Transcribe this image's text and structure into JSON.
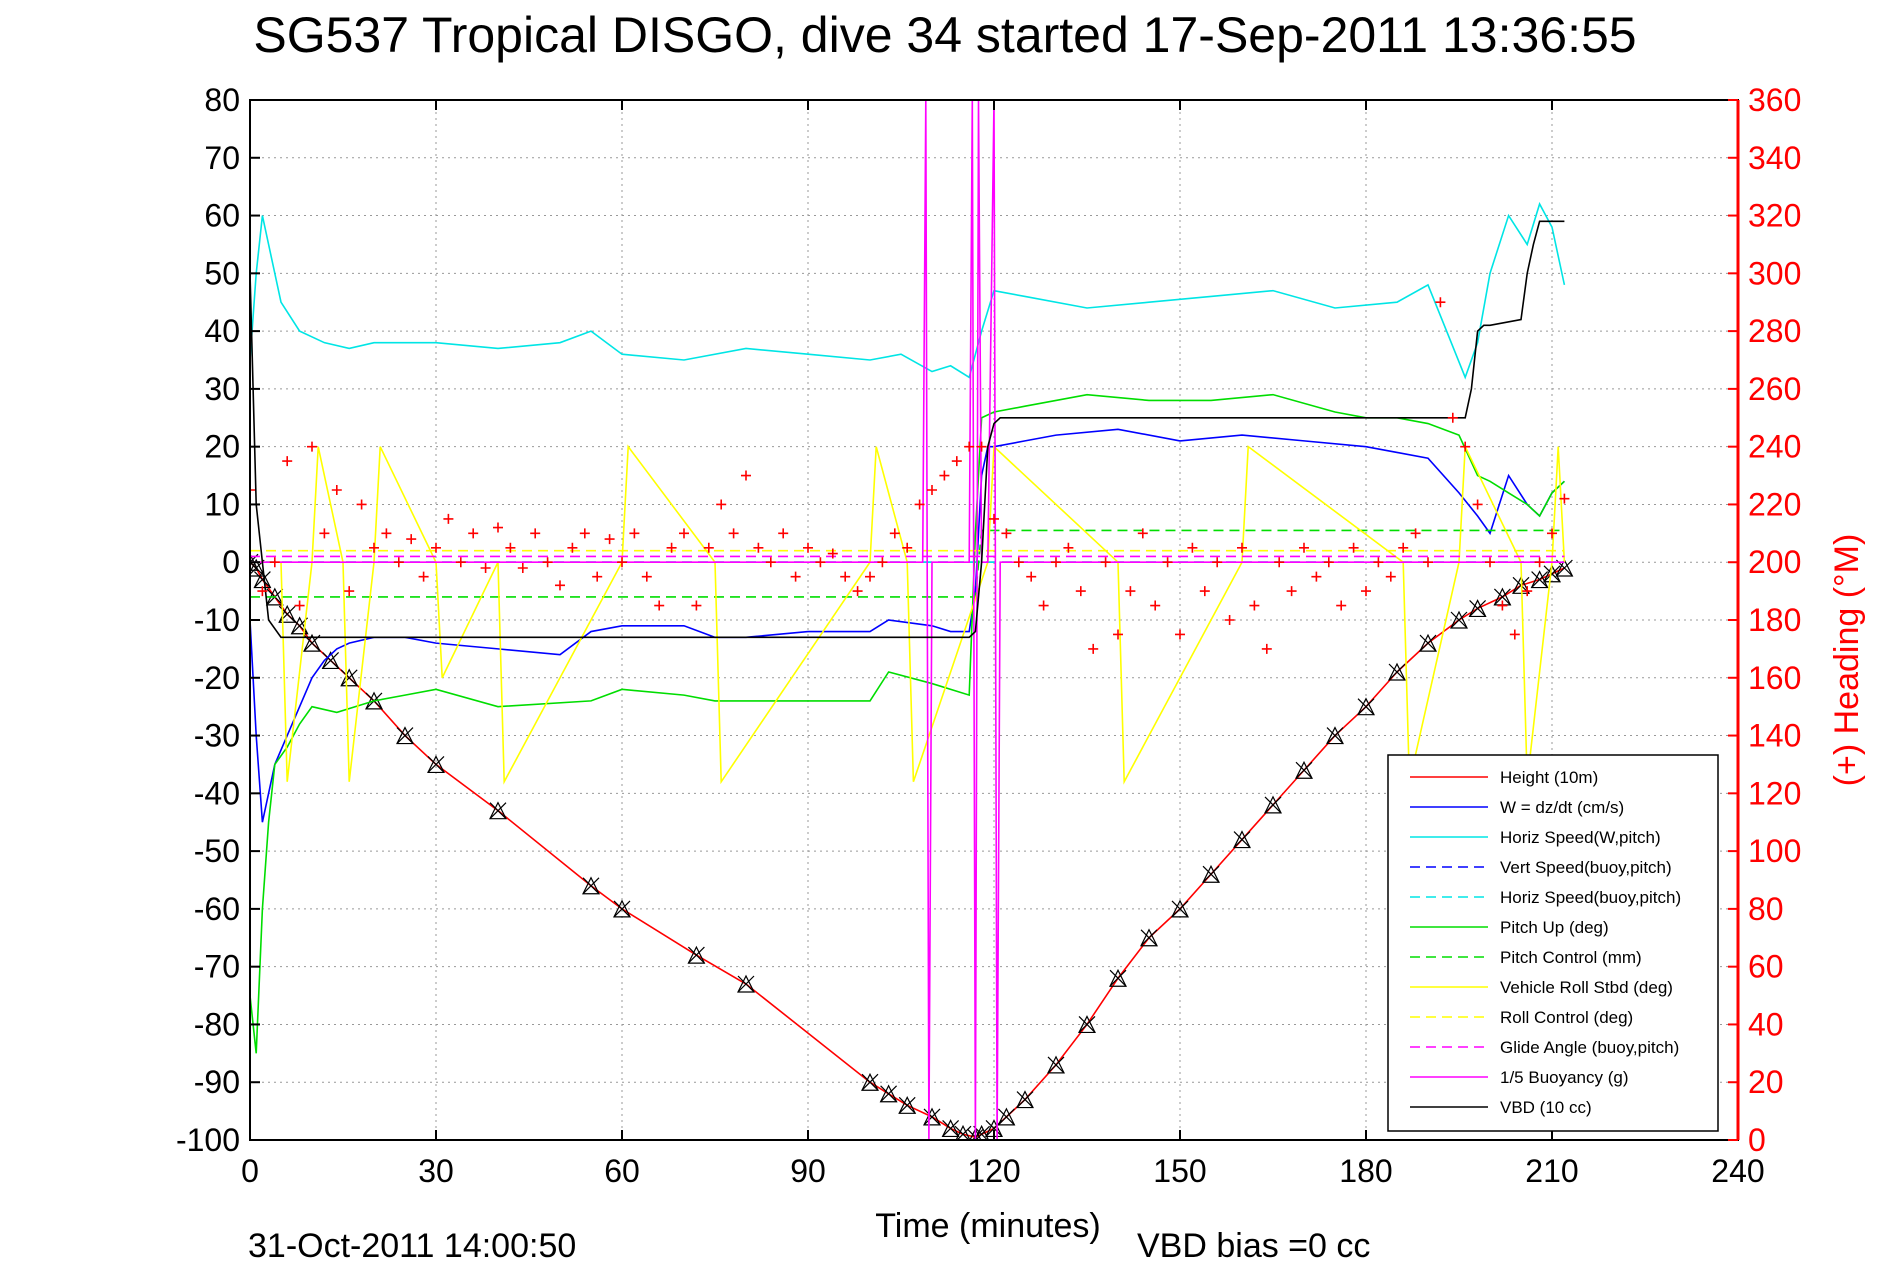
{
  "chart_data": {
    "type": "line",
    "title": "SG537 Tropical DISGO, dive 34 started 17-Sep-2011 13:36:55",
    "xlabel": "Time (minutes)",
    "ylabel_right": "(+) Heading (°M)",
    "footer_date": "31-Oct-2011 14:00:50",
    "footer_note": "VBD bias =0 cc",
    "xlim": [
      0,
      240
    ],
    "ylim_left": [
      -100,
      80
    ],
    "ylim_right": [
      0,
      360
    ],
    "grid": true,
    "legend_position": "bottom-right",
    "x_ticks": [
      "0",
      "30",
      "60",
      "90",
      "120",
      "150",
      "180",
      "210",
      "240"
    ],
    "y_ticks_left": [
      "80",
      "70",
      "60",
      "50",
      "40",
      "30",
      "20",
      "10",
      "0",
      "-10",
      "-20",
      "-30",
      "-40",
      "-50",
      "-60",
      "-70",
      "-80",
      "-90",
      "-100"
    ],
    "y_ticks_right": [
      "360",
      "340",
      "320",
      "300",
      "280",
      "260",
      "240",
      "220",
      "200",
      "180",
      "160",
      "140",
      "120",
      "100",
      "80",
      "60",
      "40",
      "20",
      "0"
    ],
    "series": [
      {
        "name": "Height (10m)",
        "color": "#ff0000",
        "style": "solid",
        "markers": "triangle-x",
        "x": [
          0,
          1,
          2,
          4,
          6,
          8,
          10,
          13,
          16,
          20,
          25,
          30,
          40,
          55,
          60,
          72,
          80,
          100,
          103,
          106,
          110,
          113,
          115,
          117,
          118,
          120,
          122,
          125,
          130,
          135,
          140,
          145,
          150,
          155,
          160,
          165,
          170,
          175,
          180,
          185,
          190,
          195,
          198,
          202,
          205,
          208,
          210,
          212
        ],
        "y": [
          0,
          -1,
          -3,
          -6,
          -9,
          -11,
          -14,
          -17,
          -20,
          -24,
          -30,
          -35,
          -43,
          -56,
          -60,
          -68,
          -73,
          -90,
          -92,
          -94,
          -96,
          -98,
          -99,
          -99.5,
          -99,
          -98,
          -96,
          -93,
          -87,
          -80,
          -72,
          -65,
          -60,
          -54,
          -48,
          -42,
          -36,
          -30,
          -25,
          -19,
          -14,
          -10,
          -8,
          -6,
          -4,
          -3,
          -2,
          -1
        ]
      },
      {
        "name": "W = dz/dt (cm/s)",
        "color": "#0000ff",
        "style": "solid",
        "x": [
          0,
          1,
          2,
          3,
          4,
          6,
          8,
          10,
          12,
          14,
          16,
          20,
          25,
          30,
          40,
          50,
          55,
          60,
          70,
          75,
          80,
          90,
          100,
          103,
          110,
          113,
          116,
          117,
          118,
          119,
          120,
          125,
          130,
          140,
          150,
          160,
          170,
          180,
          185,
          190,
          195,
          198,
          200,
          203,
          206,
          208,
          210,
          212
        ],
        "y": [
          -10,
          -30,
          -45,
          -40,
          -35,
          -30,
          -25,
          -20,
          -17,
          -15,
          -14,
          -13,
          -13,
          -14,
          -15,
          -16,
          -12,
          -11,
          -11,
          -13,
          -13,
          -12,
          -12,
          -10,
          -11,
          -12,
          -12,
          -5,
          15,
          20,
          20,
          21,
          22,
          23,
          21,
          22,
          21,
          20,
          19,
          18,
          12,
          8,
          5,
          15,
          10,
          8,
          12,
          14
        ]
      },
      {
        "name": "Horiz Speed(W,pitch)",
        "color": "#00e5e5",
        "style": "solid",
        "x": [
          0,
          1,
          2,
          3,
          5,
          8,
          12,
          16,
          20,
          30,
          40,
          50,
          55,
          60,
          70,
          80,
          90,
          100,
          105,
          110,
          113,
          116,
          118,
          120,
          125,
          135,
          145,
          155,
          165,
          175,
          185,
          190,
          193,
          196,
          198,
          200,
          203,
          206,
          208,
          210,
          212
        ],
        "y": [
          35,
          50,
          60,
          55,
          45,
          40,
          38,
          37,
          38,
          38,
          37,
          38,
          40,
          36,
          35,
          37,
          36,
          35,
          36,
          33,
          34,
          32,
          40,
          47,
          46,
          44,
          45,
          46,
          47,
          44,
          45,
          48,
          40,
          32,
          38,
          50,
          60,
          55,
          62,
          58,
          48
        ]
      },
      {
        "name": "Vert Speed(buoy,pitch)",
        "color": "#0000ff",
        "style": "dashed",
        "x": [
          0,
          212
        ],
        "y": [
          0,
          0
        ]
      },
      {
        "name": "Horiz Speed(buoy,pitch)",
        "color": "#00e5e5",
        "style": "dashed",
        "x": [
          0,
          212
        ],
        "y": [
          0,
          0
        ]
      },
      {
        "name": "Pitch Up (deg)",
        "color": "#00dd00",
        "style": "solid",
        "x": [
          0,
          1,
          2,
          3,
          4,
          6,
          8,
          10,
          14,
          20,
          25,
          30,
          40,
          55,
          60,
          70,
          75,
          80,
          100,
          103,
          110,
          116,
          117,
          118,
          120,
          125,
          135,
          145,
          155,
          165,
          175,
          180,
          185,
          190,
          195,
          198,
          200,
          203,
          206,
          208,
          210,
          212
        ],
        "y": [
          -75,
          -85,
          -60,
          -45,
          -35,
          -32,
          -28,
          -25,
          -26,
          -24,
          -23,
          -22,
          -25,
          -24,
          -22,
          -23,
          -24,
          -24,
          -24,
          -19,
          -21,
          -23,
          5,
          25,
          26,
          27,
          29,
          28,
          28,
          29,
          26,
          25,
          25,
          24,
          22,
          15,
          14,
          12,
          10,
          8,
          12,
          14
        ]
      },
      {
        "name": "Pitch Control (mm)",
        "color": "#00dd00",
        "style": "dashed",
        "x": [
          0,
          117,
          118,
          212
        ],
        "y": [
          -6,
          -6,
          5.5,
          5.5
        ]
      },
      {
        "name": "Vehicle Roll Stbd (deg)",
        "color": "#ffff00",
        "style": "solid",
        "x": [
          0,
          5,
          6,
          10,
          11,
          15,
          16,
          20,
          21,
          30,
          31,
          40,
          41,
          60,
          61,
          75,
          76,
          100,
          101,
          106,
          107,
          119,
          120,
          140,
          141,
          160,
          161,
          186,
          187,
          195,
          196,
          205,
          206,
          210,
          211,
          212
        ],
        "y": [
          0,
          0,
          -38,
          0,
          20,
          0,
          -38,
          0,
          20,
          0,
          -20,
          0,
          -38,
          0,
          20,
          0,
          -38,
          0,
          20,
          0,
          -38,
          0,
          20,
          0,
          -38,
          0,
          20,
          0,
          -38,
          0,
          20,
          0,
          -38,
          0,
          20,
          0
        ]
      },
      {
        "name": "Roll Control (deg)",
        "color": "#ffff00",
        "style": "dashed",
        "x": [
          0,
          212
        ],
        "y": [
          2,
          2
        ]
      },
      {
        "name": "Glide Angle (buoy,pitch)",
        "color": "#ff00ff",
        "style": "dashed",
        "x": [
          0,
          212
        ],
        "y": [
          1,
          1
        ]
      },
      {
        "name": "1/5 Buoyancy (g)",
        "color": "#ff00ff",
        "style": "solid",
        "x": [
          0,
          108.5,
          109,
          109.5,
          110,
          116,
          116.5,
          117,
          117.5,
          118,
          119,
          120,
          120.5,
          121,
          212
        ],
        "y": [
          0,
          0,
          80,
          -100,
          0,
          0,
          80,
          -100,
          80,
          0,
          0,
          80,
          -100,
          0,
          0
        ]
      },
      {
        "name": "VBD (10 cc)",
        "color": "#000000",
        "style": "solid",
        "x": [
          0,
          0.5,
          1,
          2,
          3,
          5,
          8,
          116,
          117,
          118,
          119,
          120,
          121,
          196,
          197,
          198,
          199,
          200,
          205,
          206,
          207,
          208,
          210,
          212
        ],
        "y": [
          50,
          30,
          10,
          0,
          -10,
          -13,
          -13,
          -13,
          -12,
          0,
          20,
          24,
          25,
          25,
          30,
          40,
          41,
          41,
          42,
          50,
          55,
          59,
          59,
          59
        ]
      }
    ],
    "heading_series": {
      "name": "Heading",
      "color": "#ff0000",
      "marker": "+",
      "x": [
        0,
        2,
        4,
        6,
        8,
        10,
        12,
        14,
        16,
        18,
        20,
        22,
        24,
        26,
        28,
        30,
        32,
        34,
        36,
        38,
        40,
        42,
        44,
        46,
        48,
        50,
        52,
        54,
        56,
        58,
        60,
        62,
        64,
        66,
        68,
        70,
        72,
        74,
        76,
        78,
        80,
        82,
        84,
        86,
        88,
        90,
        92,
        94,
        96,
        98,
        100,
        102,
        104,
        106,
        108,
        110,
        112,
        114,
        116,
        118,
        120,
        122,
        124,
        126,
        128,
        130,
        132,
        134,
        136,
        138,
        140,
        142,
        144,
        146,
        148,
        150,
        152,
        154,
        156,
        158,
        160,
        162,
        164,
        166,
        168,
        170,
        172,
        174,
        176,
        178,
        180,
        182,
        184,
        186,
        188,
        190,
        192,
        194,
        196,
        198,
        200,
        202,
        204,
        206,
        208,
        210,
        212
      ],
      "y": [
        225,
        190,
        200,
        235,
        185,
        240,
        210,
        225,
        190,
        220,
        205,
        210,
        200,
        208,
        195,
        205,
        215,
        200,
        210,
        198,
        212,
        205,
        198,
        210,
        200,
        192,
        205,
        210,
        195,
        208,
        200,
        210,
        195,
        185,
        205,
        210,
        185,
        205,
        220,
        210,
        230,
        205,
        200,
        210,
        195,
        205,
        200,
        203,
        195,
        190,
        195,
        200,
        210,
        205,
        220,
        225,
        230,
        235,
        240,
        240,
        215,
        210,
        200,
        195,
        185,
        200,
        205,
        190,
        170,
        200,
        175,
        190,
        210,
        185,
        200,
        175,
        205,
        190,
        200,
        180,
        205,
        185,
        170,
        200,
        190,
        205,
        195,
        200,
        185,
        205,
        190,
        200,
        195,
        205,
        210,
        200,
        290,
        250,
        240,
        220,
        200,
        185,
        175,
        190,
        200,
        210,
        222
      ]
    }
  }
}
